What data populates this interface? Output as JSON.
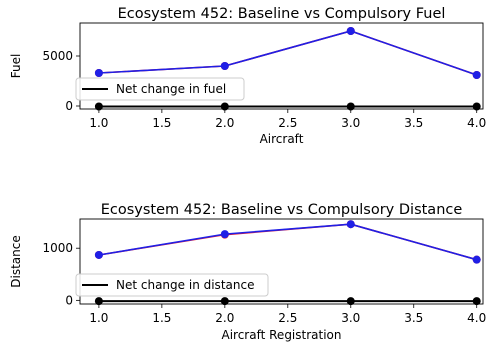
{
  "colors": {
    "baseline": "#e8192c",
    "compulsory": "#1f1fe6",
    "net_change": "#000000"
  },
  "chart_data": [
    {
      "type": "line",
      "title": "Ecosystem 452: Baseline vs Compulsory Fuel",
      "xlabel": "Aircraft",
      "ylabel": "Fuel",
      "x": [
        1.0,
        2.0,
        3.0,
        4.0
      ],
      "xlim": [
        0.85,
        4.05
      ],
      "ylim": [
        -300,
        8300
      ],
      "xticks": [
        1.0,
        1.5,
        2.0,
        2.5,
        3.0,
        3.5,
        4.0
      ],
      "xtick_labels": [
        "1.0",
        "1.5",
        "2.0",
        "2.5",
        "3.0",
        "3.5",
        "4.0"
      ],
      "yticks": [
        0,
        5000
      ],
      "ytick_labels": [
        "0",
        "5000"
      ],
      "series": [
        {
          "key": "baseline",
          "values": [
            3300,
            4000,
            7500,
            3100
          ]
        },
        {
          "key": "compulsory",
          "values": [
            3300,
            4000,
            7500,
            3100
          ]
        },
        {
          "key": "net_change",
          "name": "Net change in fuel",
          "values": [
            -50,
            -50,
            -50,
            -50
          ]
        }
      ],
      "legend": {
        "placement": "lower-left",
        "entries": [
          "Net change in fuel"
        ]
      },
      "grid": false
    },
    {
      "type": "line",
      "title": "Ecosystem 452: Baseline vs Compulsory Distance",
      "xlabel": "Aircraft Registration",
      "ylabel": "Distance",
      "x": [
        1.0,
        2.0,
        3.0,
        4.0
      ],
      "xlim": [
        0.85,
        4.05
      ],
      "ylim": [
        -70,
        1560
      ],
      "xticks": [
        1.0,
        1.5,
        2.0,
        2.5,
        3.0,
        3.5,
        4.0
      ],
      "xtick_labels": [
        "1.0",
        "1.5",
        "2.0",
        "2.5",
        "3.0",
        "3.5",
        "4.0"
      ],
      "yticks": [
        0,
        1000
      ],
      "ytick_labels": [
        "0",
        "1000"
      ],
      "series": [
        {
          "key": "baseline",
          "values": [
            870,
            1260,
            1460,
            780
          ]
        },
        {
          "key": "compulsory",
          "values": [
            870,
            1270,
            1460,
            780
          ]
        },
        {
          "key": "net_change",
          "name": "Net change in distance",
          "values": [
            -15,
            -15,
            -15,
            -15
          ]
        }
      ],
      "legend": {
        "placement": "lower-left",
        "entries": [
          "Net change in distance"
        ]
      },
      "grid": false
    }
  ]
}
